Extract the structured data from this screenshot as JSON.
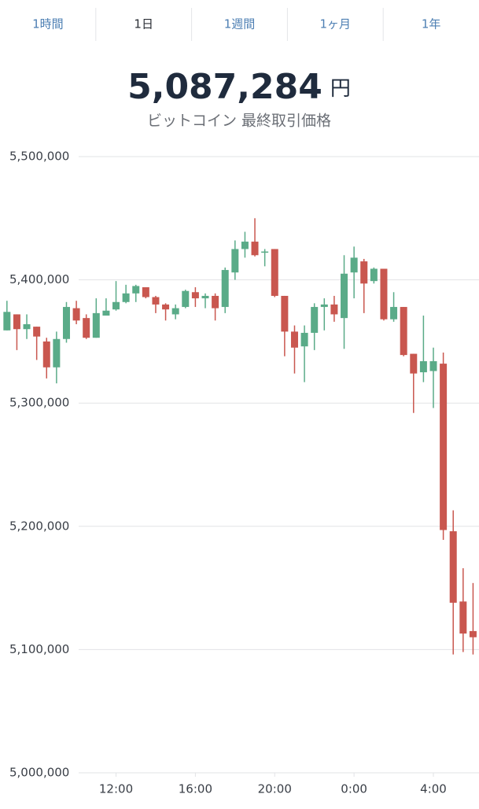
{
  "tabs": [
    "1時間",
    "1日",
    "1週間",
    "1ヶ月",
    "1年"
  ],
  "selected_tab": 1,
  "price": {
    "value": "5,087,284",
    "unit": "円",
    "caption": "ビットコイン 最終取引価格"
  },
  "chart_data": {
    "type": "candlestick",
    "up_color": "#5aab88",
    "down_color": "#c9574f",
    "grid": true,
    "x": [
      6.5,
      7,
      7.5,
      8,
      8.5,
      9,
      9.5,
      10,
      10.5,
      11,
      11.5,
      12,
      12.5,
      13,
      13.5,
      14,
      14.5,
      15,
      15.5,
      16,
      16.5,
      17,
      17.5,
      18,
      18.5,
      19,
      19.5,
      20,
      20.5,
      21,
      21.5,
      22,
      22.5,
      23,
      23.5,
      24,
      24.5,
      25,
      25.5,
      26,
      26.5,
      27,
      27.5,
      28,
      28.5,
      29,
      29.5,
      30
    ],
    "xlim": [
      6.15,
      30.3
    ],
    "xticks": [
      {
        "value": 12,
        "label": "12:00"
      },
      {
        "value": 16,
        "label": "16:00"
      },
      {
        "value": 20,
        "label": "20:00"
      },
      {
        "value": 24,
        "label": "0:00"
      },
      {
        "value": 28,
        "label": "4:00"
      }
    ],
    "ylim": [
      5000000,
      5500000
    ],
    "yticks": [
      {
        "value": 5000000,
        "label": "5,000,000"
      },
      {
        "value": 5100000,
        "label": "5,100,000"
      },
      {
        "value": 5200000,
        "label": "5,200,000"
      },
      {
        "value": 5300000,
        "label": "5,300,000"
      },
      {
        "value": 5400000,
        "label": "5,400,000"
      },
      {
        "value": 5500000,
        "label": "5,500,000"
      }
    ],
    "open": [
      5359000,
      5372000,
      5360000,
      5362000,
      5350000,
      5329000,
      5352000,
      5377000,
      5369000,
      5353000,
      5371000,
      5376000,
      5382000,
      5389000,
      5394000,
      5386000,
      5380000,
      5372000,
      5378000,
      5390000,
      5385000,
      5387000,
      5378000,
      5406000,
      5425000,
      5431000,
      5422000,
      5425000,
      5387000,
      5358000,
      5346000,
      5357000,
      5378000,
      5380000,
      5369000,
      5406000,
      5415000,
      5399000,
      5409000,
      5368000,
      5378000,
      5340000,
      5325000,
      5326000,
      5332000,
      5196000,
      5139000,
      5115000
    ],
    "high": [
      5383000,
      5372000,
      5372000,
      5362000,
      5353000,
      5358000,
      5382000,
      5383000,
      5372000,
      5385000,
      5385000,
      5399000,
      5396000,
      5396000,
      5394000,
      5387000,
      5381000,
      5380000,
      5392000,
      5394000,
      5389000,
      5389000,
      5410000,
      5432000,
      5439000,
      5450000,
      5425000,
      5425000,
      5387000,
      5363000,
      5363000,
      5381000,
      5385000,
      5387000,
      5420000,
      5427000,
      5417000,
      5410000,
      5409000,
      5390000,
      5378000,
      5340000,
      5371000,
      5345000,
      5341000,
      5213000,
      5166000,
      5154000
    ],
    "low": [
      5359000,
      5343000,
      5352000,
      5335000,
      5320000,
      5316000,
      5349000,
      5364000,
      5352000,
      5353000,
      5371000,
      5375000,
      5381000,
      5382000,
      5385000,
      5373000,
      5367000,
      5368000,
      5377000,
      5378000,
      5377000,
      5367000,
      5373000,
      5400000,
      5418000,
      5419000,
      5411000,
      5386000,
      5338000,
      5324000,
      5317000,
      5343000,
      5359000,
      5366000,
      5344000,
      5385000,
      5373000,
      5397000,
      5367000,
      5366000,
      5338000,
      5292000,
      5317000,
      5296000,
      5189000,
      5096000,
      5098000,
      5096000
    ],
    "close": [
      5374000,
      5360000,
      5364000,
      5354000,
      5329000,
      5352000,
      5378000,
      5367000,
      5353000,
      5373000,
      5375000,
      5382000,
      5389000,
      5395000,
      5386000,
      5380000,
      5376000,
      5377000,
      5391000,
      5385000,
      5387000,
      5377000,
      5408000,
      5425000,
      5431000,
      5420000,
      5423000,
      5387000,
      5358000,
      5345000,
      5357000,
      5378000,
      5380000,
      5372000,
      5405000,
      5418000,
      5397000,
      5409000,
      5368000,
      5378000,
      5339000,
      5324000,
      5334000,
      5334000,
      5197000,
      5138000,
      5113000,
      5110000
    ]
  }
}
